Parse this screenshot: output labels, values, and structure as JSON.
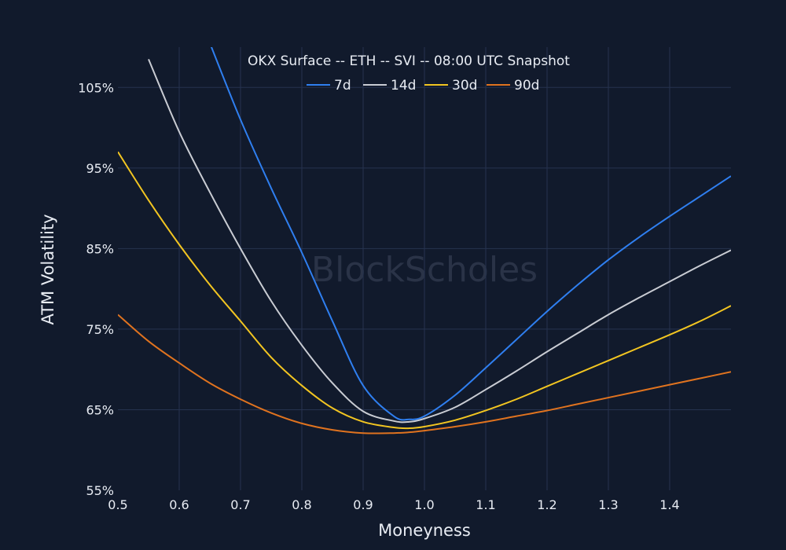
{
  "chart_data": {
    "type": "line",
    "title": "OKX Surface -- ETH -- SVI -- 08:00 UTC Snapshot",
    "xlabel": "Moneyness",
    "ylabel": "ATM Volatility",
    "watermark": "BlockScholes",
    "xlim": [
      0.5,
      1.5
    ],
    "ylim": [
      55,
      110
    ],
    "xticks": [
      0.5,
      0.6,
      0.7,
      0.8,
      0.9,
      1.0,
      1.1,
      1.2,
      1.3,
      1.4
    ],
    "xtick_labels": [
      "0.5",
      "0.6",
      "0.7",
      "0.8",
      "0.9",
      "1.0",
      "1.1",
      "1.2",
      "1.3",
      "1.4"
    ],
    "yticks": [
      55,
      65,
      75,
      85,
      95,
      105
    ],
    "ytick_labels": [
      "55%",
      "65%",
      "75%",
      "85%",
      "95%",
      "105%"
    ],
    "grid": true,
    "legend": "top-center",
    "x": [
      0.5,
      0.55,
      0.6,
      0.65,
      0.7,
      0.75,
      0.8,
      0.85,
      0.9,
      0.95,
      0.975,
      1.0,
      1.05,
      1.1,
      1.15,
      1.2,
      1.25,
      1.3,
      1.35,
      1.4,
      1.45,
      1.5
    ],
    "series": [
      {
        "name": "7d",
        "color": "#2f7ff0",
        "values": [
          null,
          null,
          null,
          110.5,
          101,
          92.5,
          84.5,
          76,
          68,
          64.2,
          63.8,
          64.2,
          66.8,
          70.2,
          73.7,
          77.2,
          80.5,
          83.6,
          86.4,
          89.0,
          91.5,
          94.0
        ]
      },
      {
        "name": "14d",
        "color": "#c9ccd3",
        "values": [
          null,
          108.5,
          99.5,
          92,
          85,
          78.5,
          73,
          68.3,
          64.8,
          63.6,
          63.5,
          63.9,
          65.3,
          67.5,
          69.8,
          72.2,
          74.5,
          76.8,
          78.9,
          80.9,
          82.9,
          84.8
        ]
      },
      {
        "name": "30d",
        "color": "#f2c521",
        "values": [
          97,
          91,
          85.5,
          80.5,
          76,
          71.5,
          68,
          65.2,
          63.5,
          62.8,
          62.7,
          62.9,
          63.7,
          64.9,
          66.3,
          67.9,
          69.5,
          71.1,
          72.7,
          74.3,
          76.0,
          77.9
        ]
      },
      {
        "name": "90d",
        "color": "#e0731f",
        "values": [
          76.8,
          73.5,
          70.8,
          68.3,
          66.3,
          64.6,
          63.3,
          62.5,
          62.1,
          62.1,
          62.2,
          62.4,
          62.9,
          63.5,
          64.2,
          64.9,
          65.7,
          66.5,
          67.3,
          68.1,
          68.9,
          69.7
        ]
      }
    ]
  }
}
